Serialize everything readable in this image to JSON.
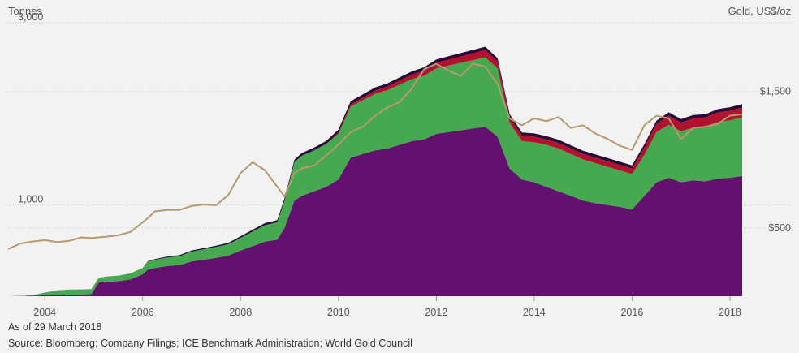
{
  "header": {
    "left_axis_title": "Tonnes",
    "right_axis_title": "Gold, US$/oz"
  },
  "footer": {
    "as_of": "As of 29 March 2018",
    "source": "Source: Bloomberg; Company Filings; ICE Benchmark Administration; World Gold Council"
  },
  "colors": {
    "background": "#f2f2f2",
    "gridline": "#c8c8c8",
    "gold_price_line": "#b49a70",
    "series": [
      "#62116e",
      "#46a84f",
      "#b3122e",
      "#2a0a36"
    ]
  },
  "chart_data": {
    "type": "area",
    "stacked": true,
    "grid": true,
    "legend": "none",
    "xlim": [
      2003.25,
      2018.3
    ],
    "x_ticks": [
      2004,
      2006,
      2008,
      2010,
      2012,
      2014,
      2016,
      2018
    ],
    "x_tick_labels": [
      "2004",
      "2006",
      "2008",
      "2010",
      "2012",
      "2014",
      "2016",
      "2018"
    ],
    "ylim_left": [
      0,
      3000
    ],
    "y_left_ticks": [
      1000,
      3000
    ],
    "y_left_tick_labels": [
      "1,000",
      "3,000"
    ],
    "ylim_right": [
      0,
      2000
    ],
    "y_right_ticks": [
      500,
      1500
    ],
    "y_right_tick_labels": [
      "$500",
      "$1,500"
    ],
    "x": [
      2003.25,
      2003.5,
      2003.75,
      2004.0,
      2004.25,
      2004.5,
      2004.75,
      2004.95,
      2005.1,
      2005.25,
      2005.5,
      2005.75,
      2006.0,
      2006.1,
      2006.25,
      2006.5,
      2006.75,
      2007.0,
      2007.25,
      2007.5,
      2007.75,
      2008.0,
      2008.25,
      2008.5,
      2008.75,
      2008.9,
      2009.1,
      2009.25,
      2009.5,
      2009.75,
      2010.0,
      2010.25,
      2010.5,
      2010.75,
      2011.0,
      2011.25,
      2011.5,
      2011.75,
      2012.0,
      2012.25,
      2012.5,
      2012.75,
      2013.0,
      2013.25,
      2013.5,
      2013.75,
      2014.0,
      2014.25,
      2014.5,
      2014.75,
      2015.0,
      2015.25,
      2015.5,
      2015.75,
      2016.0,
      2016.25,
      2016.5,
      2016.75,
      2017.0,
      2017.25,
      2017.5,
      2017.75,
      2018.0,
      2018.25
    ],
    "series": [
      {
        "values": [
          0,
          2,
          5,
          10,
          15,
          18,
          20,
          22,
          150,
          160,
          165,
          185,
          240,
          290,
          310,
          330,
          340,
          380,
          400,
          420,
          445,
          500,
          550,
          600,
          620,
          750,
          1050,
          1100,
          1150,
          1200,
          1280,
          1520,
          1560,
          1600,
          1620,
          1660,
          1700,
          1720,
          1780,
          1800,
          1820,
          1840,
          1860,
          1750,
          1400,
          1280,
          1250,
          1200,
          1150,
          1100,
          1050,
          1020,
          1000,
          980,
          950,
          1100,
          1250,
          1300,
          1250,
          1270,
          1260,
          1290,
          1300,
          1320
        ]
      },
      {
        "values": [
          0,
          0,
          5,
          30,
          50,
          55,
          55,
          56,
          50,
          55,
          60,
          65,
          70,
          85,
          90,
          95,
          100,
          110,
          115,
          120,
          125,
          140,
          160,
          180,
          190,
          300,
          420,
          440,
          450,
          470,
          500,
          560,
          590,
          620,
          640,
          660,
          680,
          700,
          720,
          730,
          740,
          750,
          760,
          750,
          500,
          420,
          440,
          460,
          470,
          460,
          450,
          440,
          420,
          400,
          390,
          450,
          550,
          580,
          560,
          580,
          600,
          620,
          630,
          640
        ]
      },
      {
        "values": [
          0,
          0,
          0,
          0,
          0,
          0,
          0,
          0,
          0,
          0,
          0,
          0,
          0,
          0,
          0,
          0,
          0,
          0,
          0,
          0,
          0,
          0,
          0,
          0,
          0,
          0,
          0,
          0,
          0,
          0,
          15,
          25,
          30,
          35,
          40,
          45,
          50,
          55,
          60,
          65,
          70,
          75,
          80,
          75,
          60,
          60,
          60,
          60,
          60,
          60,
          60,
          60,
          60,
          60,
          60,
          80,
          90,
          100,
          95,
          100,
          100,
          105,
          105,
          110
        ]
      },
      {
        "values": [
          0,
          0,
          0,
          0,
          0,
          0,
          0,
          0,
          0,
          0,
          0,
          0,
          0,
          5,
          8,
          10,
          10,
          12,
          12,
          14,
          15,
          18,
          20,
          22,
          24,
          26,
          28,
          30,
          30,
          32,
          32,
          34,
          34,
          35,
          35,
          35,
          36,
          36,
          36,
          37,
          37,
          37,
          37,
          37,
          37,
          36,
          36,
          36,
          35,
          35,
          35,
          35,
          35,
          35,
          35,
          36,
          36,
          37,
          37,
          37,
          37,
          37,
          38,
          38
        ]
      },
      {
        "axis": "right",
        "values": [
          345,
          385,
          400,
          410,
          395,
          405,
          430,
          425,
          430,
          435,
          445,
          470,
          540,
          570,
          620,
          630,
          630,
          660,
          670,
          665,
          740,
          900,
          980,
          920,
          800,
          730,
          900,
          935,
          955,
          1030,
          1110,
          1200,
          1240,
          1320,
          1380,
          1420,
          1520,
          1660,
          1700,
          1650,
          1610,
          1700,
          1680,
          1550,
          1300,
          1250,
          1300,
          1280,
          1310,
          1230,
          1250,
          1190,
          1150,
          1100,
          1070,
          1250,
          1320,
          1300,
          1150,
          1230,
          1240,
          1260,
          1320,
          1330
        ]
      }
    ]
  }
}
